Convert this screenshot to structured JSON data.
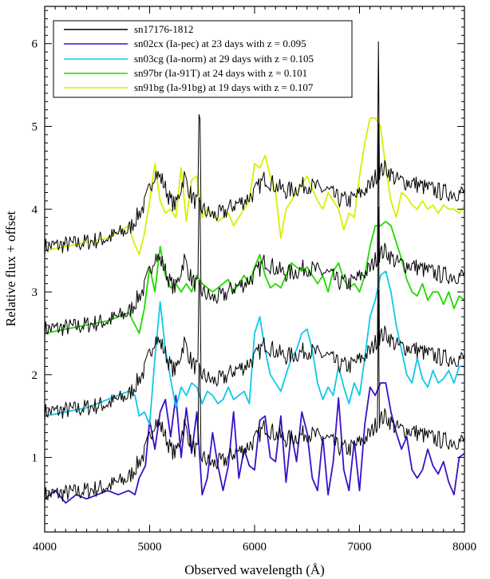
{
  "chart_data": {
    "type": "line",
    "xlabel": "Observed wavelength (Å)",
    "ylabel": "Relative flux + offset",
    "xlim": [
      4000,
      8000
    ],
    "ylim": [
      0.1,
      6.45
    ],
    "x_ticks": [
      4000,
      5000,
      6000,
      7000,
      8000
    ],
    "y_ticks": [
      1,
      2,
      3,
      4,
      5,
      6
    ],
    "grid": false,
    "legend_position": "top-left",
    "observed": {
      "name": "sn17176-1812",
      "color": "#000000",
      "offsets": [
        0,
        1,
        2,
        3
      ],
      "base_flux": [
        [
          4000,
          0.55
        ],
        [
          4300,
          0.58
        ],
        [
          4600,
          0.65
        ],
        [
          4800,
          0.75
        ],
        [
          4950,
          1.05
        ],
        [
          5050,
          1.45
        ],
        [
          5120,
          1.35
        ],
        [
          5200,
          1.1
        ],
        [
          5250,
          1.05
        ],
        [
          5330,
          1.4
        ],
        [
          5400,
          1.15
        ],
        [
          5500,
          1.0
        ],
        [
          5600,
          0.92
        ],
        [
          5700,
          0.95
        ],
        [
          5800,
          1.05
        ],
        [
          5900,
          1.1
        ],
        [
          6000,
          1.2
        ],
        [
          6100,
          1.38
        ],
        [
          6200,
          1.28
        ],
        [
          6300,
          1.22
        ],
        [
          6400,
          1.25
        ],
        [
          6500,
          1.3
        ],
        [
          6600,
          1.25
        ],
        [
          6700,
          1.22
        ],
        [
          6800,
          1.12
        ],
        [
          6900,
          1.1
        ],
        [
          7000,
          1.18
        ],
        [
          7100,
          1.28
        ],
        [
          7180,
          1.45
        ],
        [
          7250,
          1.5
        ],
        [
          7350,
          1.35
        ],
        [
          7500,
          1.32
        ],
        [
          7650,
          1.25
        ],
        [
          7800,
          1.2
        ],
        [
          8000,
          1.2
        ]
      ],
      "emission_lines": [
        {
          "x": 5475,
          "peak_above_base": 1.0
        },
        {
          "x": 7180,
          "peak_above_base": 1.6
        }
      ]
    },
    "series": [
      {
        "name": "sn02cx (Ia-pec) at 23 days with z = 0.095",
        "color": "#3b10c8",
        "offset": 0,
        "x": [
          4000,
          4100,
          4200,
          4300,
          4400,
          4500,
          4600,
          4700,
          4800,
          4860,
          4900,
          4960,
          5000,
          5050,
          5100,
          5150,
          5200,
          5250,
          5300,
          5350,
          5400,
          5450,
          5500,
          5550,
          5600,
          5650,
          5700,
          5750,
          5800,
          5850,
          5900,
          5950,
          6000,
          6050,
          6100,
          6150,
          6200,
          6250,
          6300,
          6350,
          6400,
          6450,
          6500,
          6550,
          6600,
          6650,
          6700,
          6750,
          6800,
          6850,
          6900,
          6950,
          7000,
          7050,
          7100,
          7150,
          7200,
          7250,
          7300,
          7350,
          7400,
          7450,
          7500,
          7550,
          7600,
          7650,
          7700,
          7750,
          7800,
          7850,
          7900,
          7950,
          8000
        ],
        "values": [
          0.5,
          0.6,
          0.45,
          0.55,
          0.5,
          0.55,
          0.6,
          0.55,
          0.6,
          0.55,
          0.75,
          0.9,
          1.45,
          1.1,
          1.55,
          1.7,
          1.25,
          1.75,
          1.0,
          1.6,
          1.05,
          1.55,
          0.55,
          0.75,
          1.3,
          0.9,
          0.6,
          0.9,
          1.55,
          0.75,
          1.1,
          0.9,
          0.85,
          1.45,
          1.5,
          1.0,
          0.95,
          1.5,
          0.7,
          1.3,
          0.95,
          1.55,
          1.3,
          0.75,
          0.6,
          1.25,
          0.55,
          0.95,
          1.72,
          0.85,
          0.6,
          1.2,
          0.6,
          1.4,
          1.85,
          1.75,
          1.9,
          1.9,
          1.55,
          1.3,
          1.1,
          1.25,
          0.85,
          0.75,
          0.85,
          1.1,
          0.9,
          0.8,
          0.95,
          0.7,
          0.55,
          1.0,
          1.05
        ]
      },
      {
        "name": "sn03cg (Ia-norm) at 29 days with z = 0.105",
        "color": "#10c8e8",
        "offset": 1,
        "x": [
          4000,
          4200,
          4400,
          4600,
          4800,
          4860,
          4900,
          4950,
          5000,
          5050,
          5100,
          5150,
          5200,
          5250,
          5300,
          5350,
          5400,
          5450,
          5500,
          5550,
          5600,
          5650,
          5700,
          5750,
          5800,
          5850,
          5900,
          5950,
          6000,
          6050,
          6100,
          6150,
          6200,
          6250,
          6300,
          6350,
          6400,
          6450,
          6500,
          6550,
          6600,
          6650,
          6700,
          6750,
          6800,
          6850,
          6900,
          6950,
          7000,
          7050,
          7100,
          7150,
          7200,
          7250,
          7300,
          7350,
          7400,
          7450,
          7500,
          7550,
          7600,
          7650,
          7700,
          7750,
          7800,
          7850,
          7900,
          7950,
          8000
        ],
        "values": [
          1.5,
          1.55,
          1.6,
          1.7,
          1.8,
          1.75,
          1.5,
          1.55,
          1.4,
          2.2,
          2.88,
          2.3,
          1.95,
          1.6,
          1.85,
          1.75,
          1.9,
          1.85,
          1.65,
          1.8,
          1.75,
          1.65,
          1.7,
          1.85,
          1.7,
          1.75,
          1.8,
          1.65,
          2.5,
          2.7,
          2.3,
          2.0,
          1.9,
          1.8,
          2.0,
          2.2,
          2.3,
          2.5,
          2.55,
          2.3,
          1.9,
          1.7,
          1.85,
          1.75,
          2.1,
          1.85,
          1.65,
          1.9,
          1.75,
          2.2,
          2.7,
          2.9,
          3.2,
          3.25,
          3.0,
          2.6,
          2.3,
          2.0,
          1.9,
          2.2,
          1.95,
          1.85,
          2.05,
          1.9,
          1.95,
          2.05,
          1.9,
          2.1,
          2.1
        ]
      },
      {
        "name": "sn97br (Ia-91T) at 24 days with z = 0.101",
        "color": "#22d800",
        "offset": 2,
        "x": [
          4000,
          4200,
          4400,
          4600,
          4800,
          4900,
          4950,
          5000,
          5050,
          5100,
          5150,
          5200,
          5250,
          5300,
          5350,
          5400,
          5450,
          5500,
          5550,
          5600,
          5650,
          5700,
          5750,
          5800,
          5850,
          5900,
          5950,
          6000,
          6050,
          6100,
          6150,
          6200,
          6250,
          6300,
          6350,
          6400,
          6450,
          6500,
          6550,
          6600,
          6650,
          6700,
          6750,
          6800,
          6850,
          6900,
          6950,
          7000,
          7050,
          7100,
          7150,
          7200,
          7250,
          7300,
          7350,
          7400,
          7450,
          7500,
          7550,
          7600,
          7650,
          7700,
          7750,
          7800,
          7850,
          7900,
          7950,
          8000
        ],
        "values": [
          2.5,
          2.55,
          2.6,
          2.65,
          2.75,
          2.5,
          2.8,
          3.3,
          3.0,
          3.55,
          3.2,
          3.05,
          3.1,
          3.0,
          3.1,
          3.0,
          3.2,
          3.1,
          3.05,
          3.0,
          3.05,
          3.1,
          3.15,
          3.0,
          3.1,
          3.2,
          3.1,
          3.3,
          3.45,
          3.2,
          3.05,
          3.1,
          3.05,
          3.2,
          3.35,
          3.3,
          3.25,
          3.3,
          3.2,
          3.1,
          3.2,
          3.0,
          3.25,
          3.35,
          3.15,
          3.05,
          3.1,
          3.0,
          3.2,
          3.55,
          3.8,
          3.8,
          3.85,
          3.8,
          3.6,
          3.4,
          3.15,
          3.0,
          2.95,
          3.1,
          2.9,
          3.0,
          3.0,
          2.85,
          3.0,
          2.8,
          2.95,
          2.9
        ]
      },
      {
        "name": "sn91bg (Ia-91bg) at 19 days with z = 0.107",
        "color": "#d8f000",
        "offset": 3,
        "x": [
          4000,
          4200,
          4400,
          4600,
          4800,
          4850,
          4900,
          4950,
          5000,
          5050,
          5100,
          5150,
          5200,
          5250,
          5300,
          5350,
          5400,
          5450,
          5500,
          5550,
          5600,
          5650,
          5700,
          5750,
          5800,
          5850,
          5900,
          5950,
          6000,
          6050,
          6100,
          6150,
          6200,
          6250,
          6300,
          6350,
          6400,
          6450,
          6500,
          6550,
          6600,
          6650,
          6700,
          6750,
          6800,
          6850,
          6900,
          6950,
          7000,
          7050,
          7100,
          7150,
          7200,
          7250,
          7300,
          7350,
          7400,
          7450,
          7500,
          7550,
          7600,
          7650,
          7700,
          7750,
          7800,
          7850,
          7900,
          7950,
          8000
        ],
        "values": [
          3.5,
          3.55,
          3.6,
          3.65,
          3.8,
          3.6,
          3.45,
          3.7,
          4.1,
          4.55,
          4.1,
          3.95,
          4.0,
          3.9,
          4.5,
          3.85,
          4.35,
          4.4,
          3.9,
          4.0,
          3.95,
          3.85,
          3.9,
          3.95,
          3.8,
          3.9,
          4.0,
          4.1,
          4.55,
          4.5,
          4.65,
          4.4,
          4.2,
          3.65,
          4.0,
          4.1,
          4.2,
          4.3,
          4.4,
          4.25,
          4.1,
          4.0,
          4.2,
          4.1,
          4.0,
          3.75,
          3.95,
          3.9,
          4.4,
          4.8,
          5.1,
          5.1,
          5.0,
          4.5,
          4.1,
          3.9,
          4.2,
          4.15,
          4.05,
          4.0,
          4.1,
          4.0,
          4.05,
          3.95,
          4.05,
          4.0,
          4.0,
          3.95,
          4.05
        ]
      }
    ]
  }
}
